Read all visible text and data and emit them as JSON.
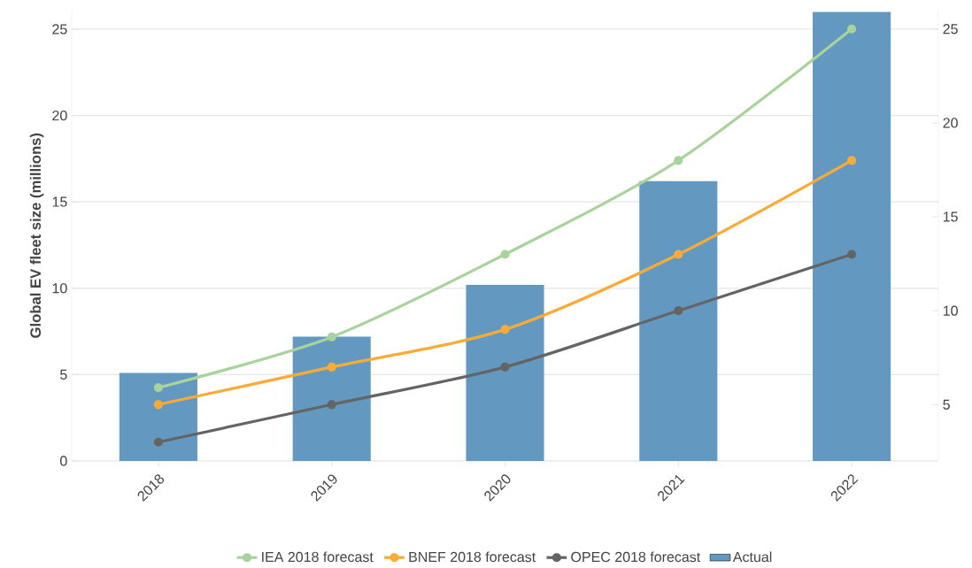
{
  "chart_data": {
    "type": "bar",
    "ylabel": "Global EV fleet size (millions)",
    "categories": [
      "2018",
      "2019",
      "2020",
      "2021",
      "2022"
    ],
    "series": [
      {
        "name": "IEA 2018 forecast",
        "type": "line",
        "axis": "y2",
        "color": "#a8d39c",
        "values": [
          5.9,
          8.6,
          13,
          18,
          25
        ]
      },
      {
        "name": "BNEF 2018 forecast",
        "type": "line",
        "axis": "y2",
        "color": "#f9ab38",
        "values": [
          5,
          7,
          9,
          13,
          18
        ]
      },
      {
        "name": "OPEC 2018 forecast",
        "type": "line",
        "axis": "y2",
        "color": "#646464",
        "values": [
          3,
          5,
          7,
          10,
          13
        ]
      },
      {
        "name": "Actual",
        "color": "#6399c0",
        "values": [
          5.1,
          7.2,
          10.2,
          16.2,
          26
        ]
      }
    ],
    "ylim": [
      0,
      26.1
    ],
    "yticks": [
      0,
      5,
      10,
      15,
      20,
      25
    ],
    "y2lim": [
      2,
      26
    ],
    "y2ticks": [
      5,
      10,
      15,
      20,
      25
    ],
    "grid": "y",
    "legend": "bottom",
    "marker": "circle"
  }
}
